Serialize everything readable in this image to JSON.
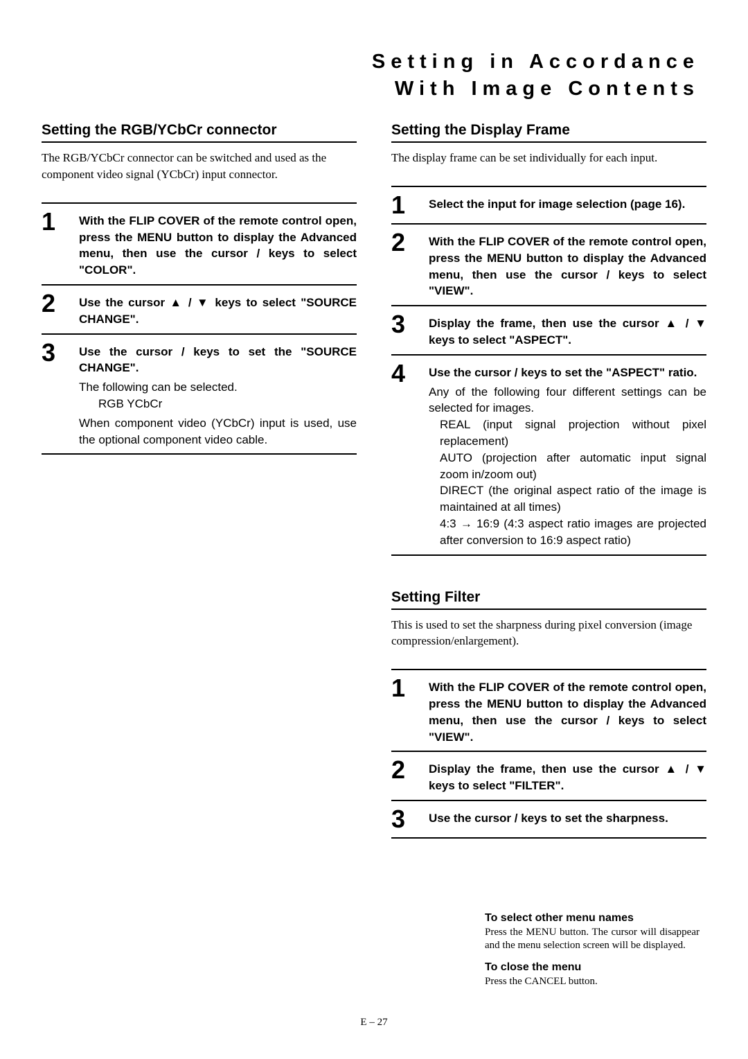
{
  "page_title_line1": "Setting in Accordance",
  "page_title_line2": "With Image Contents",
  "left": {
    "section1": {
      "title": "Setting the RGB/YCbCr connector",
      "intro": "The RGB/YCbCr connector can be switched and used as the component video signal (YCbCr) input connector.",
      "steps": [
        {
          "num": "1",
          "text": "With the FLIP COVER of the remote control open, press the MENU button to display the Advanced menu, then use the cursor    /    keys to select \"COLOR\"."
        },
        {
          "num": "2",
          "text": "Use the cursor ▲ / ▼ keys to select \"SOURCE CHANGE\"."
        },
        {
          "num": "3",
          "text": "Use the cursor    /    keys to set the \"SOURCE CHANGE\".",
          "note1": "The following can be selected.",
          "sub": "RGB     YCbCr",
          "note2": "When component video (YCbCr) input is used, use the optional component video cable."
        }
      ]
    }
  },
  "right": {
    "section1": {
      "title": "Setting the Display Frame",
      "intro": "The display frame can be set individually for each input.",
      "steps": [
        {
          "num": "1",
          "text": "Select the input for image selection (page 16)."
        },
        {
          "num": "2",
          "text": "With the FLIP COVER of the remote control open, press the MENU button to display the Advanced menu, then use the cursor    /    keys to select \"VIEW\"."
        },
        {
          "num": "3",
          "text": "Display the frame, then use the cursor ▲ / ▼ keys to select \"ASPECT\"."
        },
        {
          "num": "4",
          "text": "Use the cursor    /    keys to set the \"ASPECT\" ratio.",
          "note1": "Any of the following four different settings can be selected for images.",
          "items": [
            "REAL (input signal projection without pixel replacement)",
            "AUTO (projection after automatic input signal zoom in/zoom out)",
            "DIRECT (the original aspect ratio of the image is maintained at all times)",
            "4:3 → 16:9 (4:3 aspect ratio images are projected after conversion to 16:9 aspect ratio)"
          ]
        }
      ]
    },
    "section2": {
      "title": "Setting Filter",
      "intro": "This is used to set the sharpness during pixel conversion (image compression/enlargement).",
      "steps": [
        {
          "num": "1",
          "text": "With the FLIP COVER of the remote control open, press the MENU button to display the Advanced menu, then use the cursor    /    keys to select \"VIEW\"."
        },
        {
          "num": "2",
          "text": "Display the frame, then use the cursor ▲ / ▼ keys to select \"FILTER\"."
        },
        {
          "num": "3",
          "text": "Use the cursor    /    keys to set the sharpness."
        }
      ]
    }
  },
  "footer": {
    "note1_title": "To select other menu names",
    "note1_body": "Press the MENU button. The cursor will disappear and the menu selection screen will be displayed.",
    "note2_title": "To close the menu",
    "note2_body": "Press the CANCEL button."
  },
  "page_number": "E – 27"
}
